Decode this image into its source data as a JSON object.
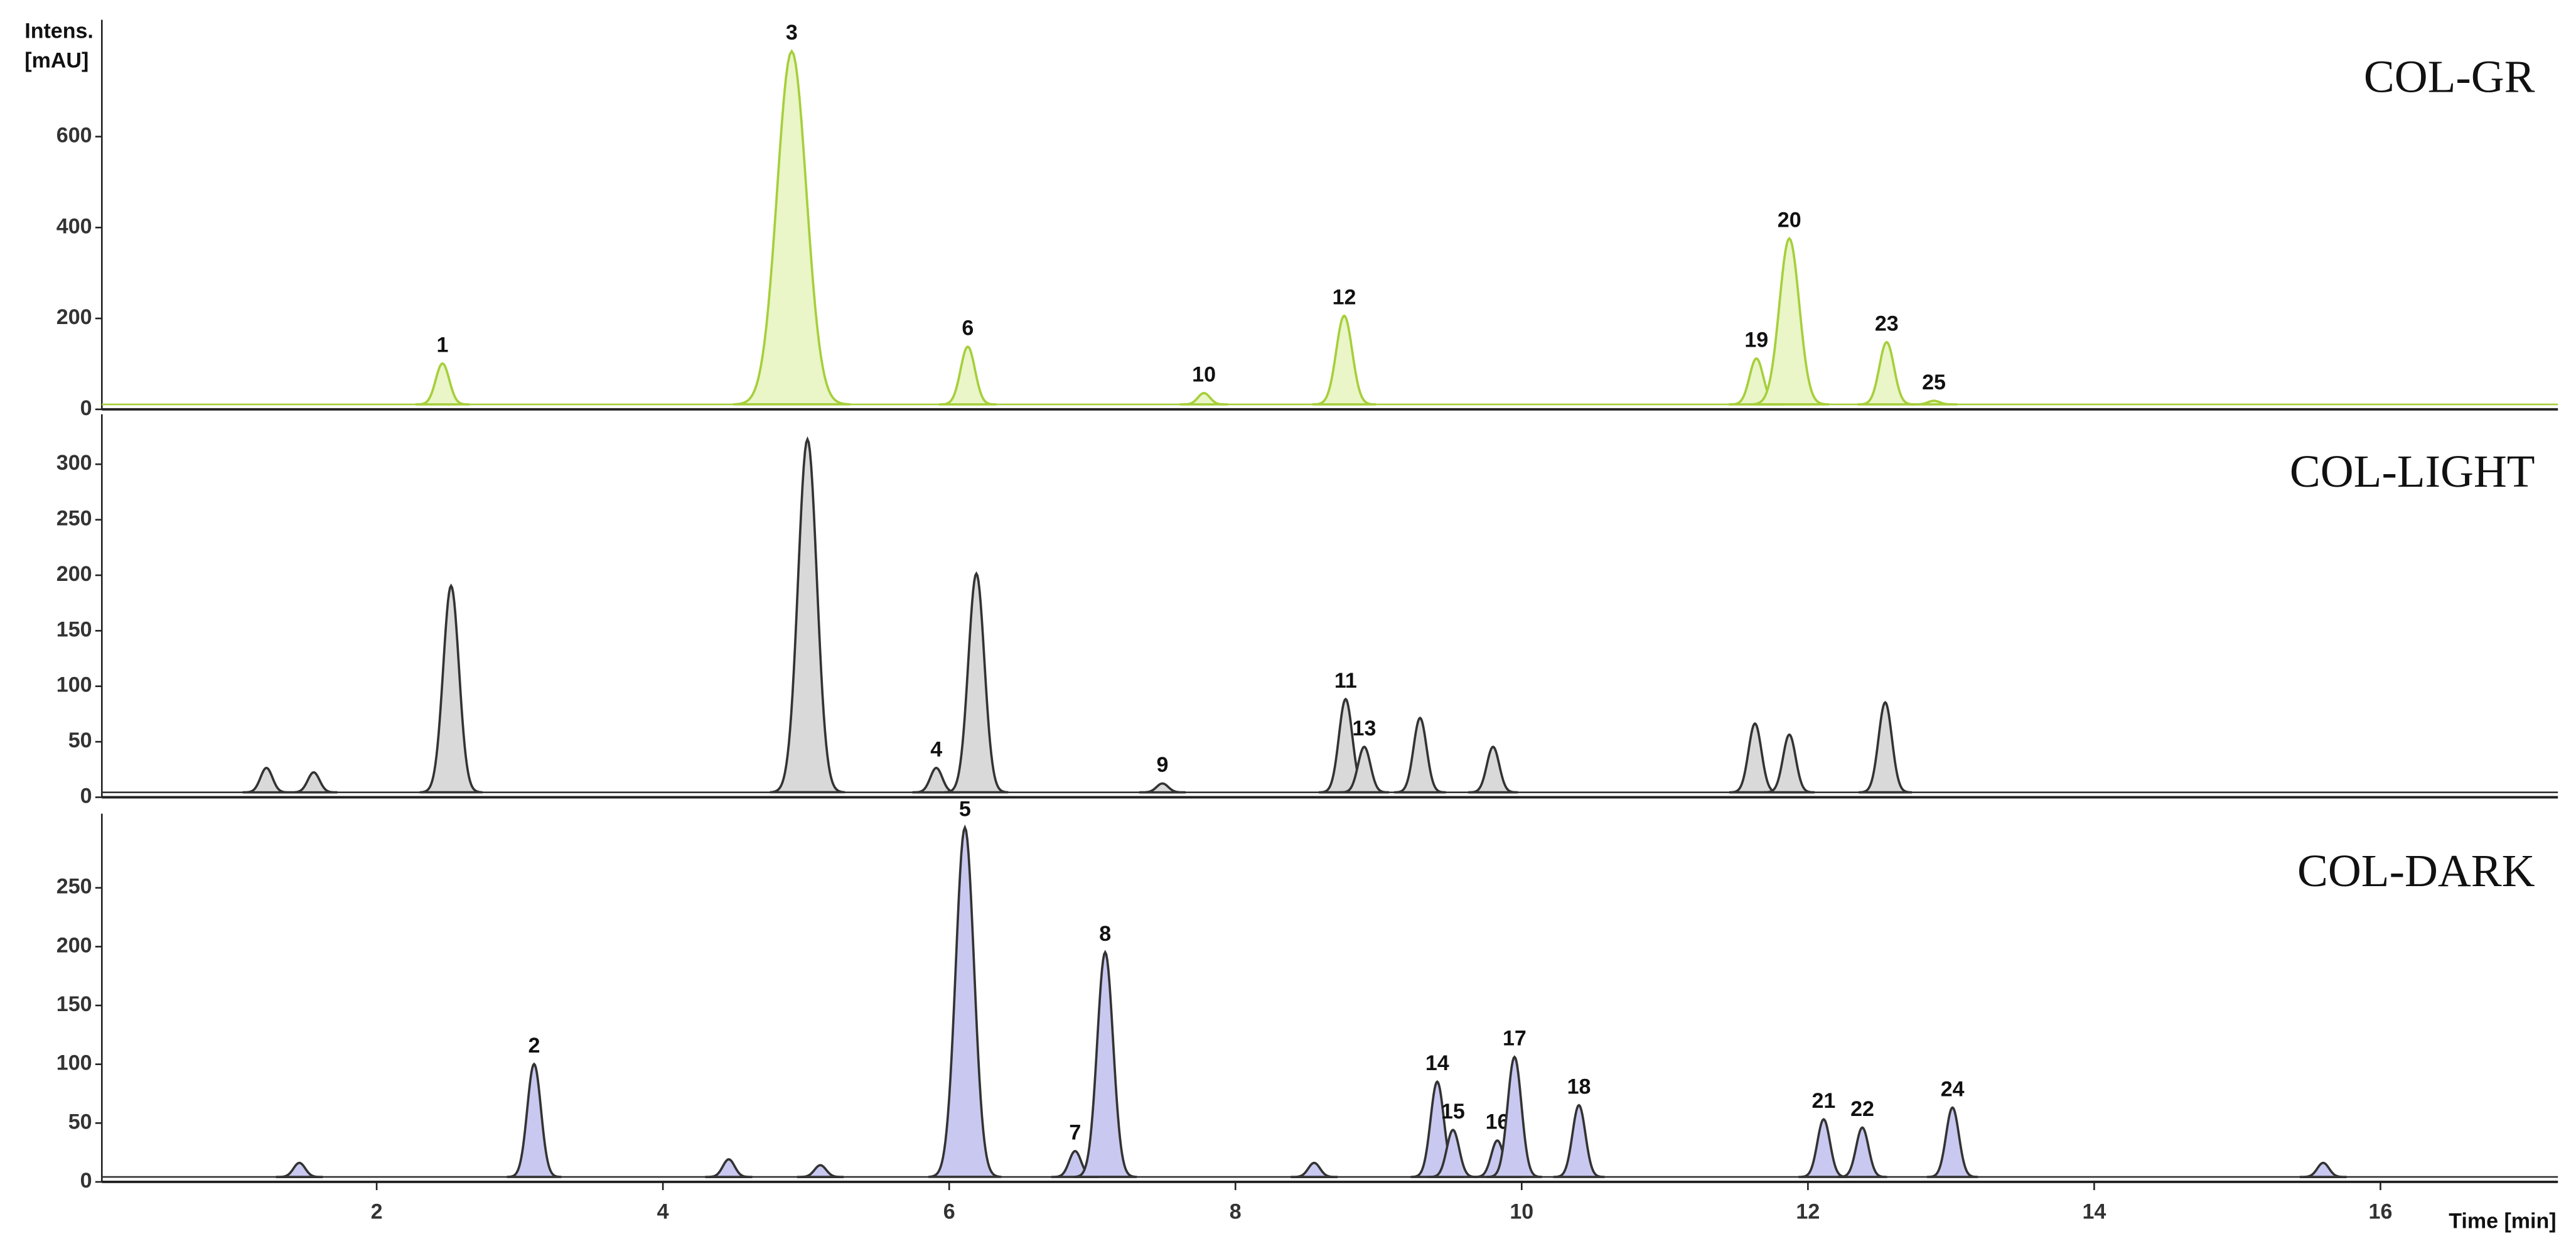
{
  "chart_data": [
    {
      "type": "chromatogram",
      "title": "COL-GR",
      "y_label": [
        "Intens.",
        "[mAU]"
      ],
      "x": [
        2.46,
        4.9,
        6.13,
        7.78,
        8.76,
        11.64,
        11.87,
        12.55,
        12.88
      ],
      "values": [
        90,
        777,
        127,
        25,
        195,
        101,
        365,
        137,
        8
      ],
      "labels": [
        "1",
        "3",
        "6",
        "10",
        "12",
        "19",
        "20",
        "23",
        "25"
      ],
      "color": "#eaf5c8",
      "line_color": "#a6cf3a",
      "xlim": [
        0.08,
        17.24
      ],
      "ylim": [
        0,
        857
      ],
      "yticks": [
        0,
        200,
        400,
        600
      ]
    },
    {
      "type": "chromatogram",
      "title": "COL-LIGHT",
      "x": [
        1.23,
        1.56,
        2.52,
        5.01,
        5.91,
        6.19,
        7.49,
        8.77,
        8.9,
        9.29,
        9.8,
        11.63,
        11.87,
        12.54
      ],
      "values": [
        22,
        18,
        186,
        318,
        22,
        197,
        8,
        84,
        41,
        67,
        41,
        62,
        52,
        81
      ],
      "labels": [
        null,
        null,
        null,
        null,
        "4",
        null,
        "9",
        "11",
        "13",
        null,
        null,
        null,
        null,
        null
      ],
      "color": "#d9d9d9",
      "line_color": "#333333",
      "xlim": [
        0.08,
        17.24
      ],
      "ylim": [
        0,
        345
      ],
      "yticks": [
        0,
        50,
        100,
        150,
        200,
        250,
        300
      ]
    },
    {
      "type": "chromatogram",
      "title": "COL-DARK",
      "x_label": "Time [min]",
      "x": [
        1.46,
        3.1,
        4.46,
        5.1,
        6.11,
        6.88,
        7.09,
        8.55,
        9.41,
        9.52,
        9.83,
        9.95,
        10.4,
        12.11,
        12.38,
        13.01,
        15.6
      ],
      "values": [
        12,
        96,
        15,
        10,
        297,
        22,
        191,
        12,
        81,
        40,
        31,
        102,
        61,
        49,
        42,
        59,
        12
      ],
      "labels": [
        null,
        "2",
        null,
        null,
        "5",
        "7",
        "8",
        null,
        "14",
        "15",
        "16",
        "17",
        "18",
        "21",
        "22",
        "24",
        null
      ],
      "color": "#c9c8f0",
      "line_color": "#333333",
      "xlim": [
        0.08,
        17.24
      ],
      "ylim": [
        0,
        313
      ],
      "yticks": [
        0,
        50,
        100,
        150,
        200,
        250
      ],
      "xticks": [
        2,
        4,
        6,
        8,
        10,
        12,
        14,
        16
      ]
    }
  ]
}
